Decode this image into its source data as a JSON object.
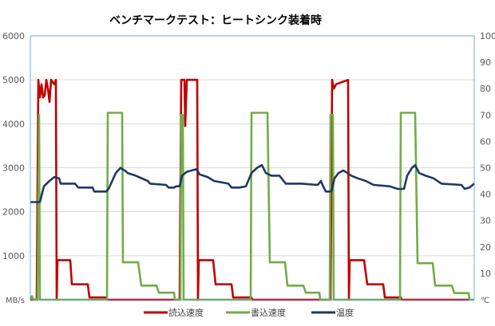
{
  "chart_data": {
    "type": "line",
    "title": "ベンチマークテスト：ヒートシンク装着時",
    "y_left": {
      "label": "MB/s",
      "range": [
        0,
        6000
      ],
      "ticks": [
        1000,
        2000,
        3000,
        4000,
        5000,
        6000
      ]
    },
    "y_right": {
      "label": "℃",
      "range": [
        0,
        100
      ],
      "ticks": [
        10,
        20,
        30,
        40,
        50,
        60,
        70,
        80,
        90,
        100
      ]
    },
    "x_range": [
      0,
      556
    ],
    "grid": true,
    "legend_position": "bottom",
    "series": [
      {
        "name": "読込速度",
        "axis": "left",
        "color": "#c00000",
        "points": [
          [
            0,
            0
          ],
          [
            8,
            0
          ],
          [
            10,
            5000
          ],
          [
            12,
            4600
          ],
          [
            14,
            4900
          ],
          [
            16,
            4600
          ],
          [
            18,
            4650
          ],
          [
            20,
            5000
          ],
          [
            22,
            4800
          ],
          [
            24,
            4500
          ],
          [
            26,
            5000
          ],
          [
            30,
            4900
          ],
          [
            32,
            5000
          ],
          [
            33,
            0
          ],
          [
            34,
            900
          ],
          [
            50,
            900
          ],
          [
            52,
            350
          ],
          [
            72,
            350
          ],
          [
            74,
            50
          ],
          [
            95,
            50
          ],
          [
            96,
            0
          ],
          [
            187,
            0
          ],
          [
            189,
            5000
          ],
          [
            193,
            5000
          ],
          [
            194,
            3950
          ],
          [
            196,
            5000
          ],
          [
            209,
            5000
          ],
          [
            210,
            0
          ],
          [
            211,
            900
          ],
          [
            229,
            900
          ],
          [
            232,
            350
          ],
          [
            252,
            350
          ],
          [
            254,
            50
          ],
          [
            277,
            50
          ],
          [
            278,
            0
          ],
          [
            376,
            0
          ],
          [
            378,
            5000
          ],
          [
            380,
            4800
          ],
          [
            383,
            4900
          ],
          [
            398,
            5000
          ],
          [
            399,
            0
          ],
          [
            400,
            900
          ],
          [
            418,
            900
          ],
          [
            422,
            350
          ],
          [
            442,
            350
          ],
          [
            444,
            50
          ],
          [
            464,
            50
          ],
          [
            465,
            0
          ],
          [
            550,
            0
          ]
        ]
      },
      {
        "name": "書込速度",
        "axis": "left",
        "color": "#70ad47",
        "points": [
          [
            0,
            0
          ],
          [
            2,
            80
          ],
          [
            4,
            0
          ],
          [
            9,
            0
          ],
          [
            11,
            4200
          ],
          [
            12,
            0
          ],
          [
            96,
            0
          ],
          [
            97,
            4250
          ],
          [
            115,
            4250
          ],
          [
            116,
            850
          ],
          [
            135,
            850
          ],
          [
            139,
            320
          ],
          [
            158,
            320
          ],
          [
            161,
            160
          ],
          [
            180,
            160
          ],
          [
            181,
            0
          ],
          [
            188,
            0
          ],
          [
            189,
            4200
          ],
          [
            191,
            4200
          ],
          [
            192,
            0
          ],
          [
            276,
            0
          ],
          [
            277,
            4250
          ],
          [
            297,
            4250
          ],
          [
            300,
            850
          ],
          [
            319,
            850
          ],
          [
            322,
            320
          ],
          [
            342,
            320
          ],
          [
            345,
            160
          ],
          [
            362,
            160
          ],
          [
            363,
            0
          ],
          [
            375,
            0
          ],
          [
            376,
            4200
          ],
          [
            379,
            4200
          ],
          [
            380,
            0
          ],
          [
            463,
            0
          ],
          [
            464,
            4250
          ],
          [
            482,
            4250
          ],
          [
            485,
            830
          ],
          [
            504,
            830
          ],
          [
            507,
            320
          ],
          [
            528,
            320
          ],
          [
            531,
            150
          ],
          [
            549,
            150
          ],
          [
            550,
            0
          ],
          [
            556,
            0
          ]
        ]
      },
      {
        "name": "温度",
        "axis": "right",
        "color": "#1f3864",
        "points": [
          [
            0,
            37
          ],
          [
            12,
            37
          ],
          [
            17,
            43
          ],
          [
            24,
            45
          ],
          [
            30,
            46.5
          ],
          [
            36,
            46
          ],
          [
            38,
            44
          ],
          [
            56,
            44
          ],
          [
            60,
            42.5
          ],
          [
            78,
            42.5
          ],
          [
            80,
            41
          ],
          [
            95,
            41
          ],
          [
            98,
            42
          ],
          [
            107,
            48
          ],
          [
            113,
            50
          ],
          [
            118,
            49
          ],
          [
            122,
            48
          ],
          [
            132,
            47
          ],
          [
            147,
            45
          ],
          [
            150,
            44
          ],
          [
            170,
            43.5
          ],
          [
            173,
            42.5
          ],
          [
            180,
            42.5
          ],
          [
            183,
            43
          ],
          [
            187,
            43
          ],
          [
            190,
            47
          ],
          [
            196,
            48.5
          ],
          [
            208,
            49.5
          ],
          [
            212,
            47.5
          ],
          [
            222,
            46.5
          ],
          [
            230,
            45
          ],
          [
            248,
            44
          ],
          [
            252,
            42.5
          ],
          [
            262,
            42.5
          ],
          [
            270,
            43
          ],
          [
            277,
            48
          ],
          [
            284,
            50
          ],
          [
            290,
            51
          ],
          [
            295,
            48
          ],
          [
            302,
            47
          ],
          [
            312,
            47
          ],
          [
            320,
            44
          ],
          [
            340,
            44
          ],
          [
            360,
            43.5
          ],
          [
            364,
            45
          ],
          [
            366,
            43.5
          ],
          [
            370,
            41
          ],
          [
            377,
            41
          ],
          [
            381,
            46
          ],
          [
            386,
            48
          ],
          [
            392,
            49
          ],
          [
            397,
            48
          ],
          [
            402,
            47
          ],
          [
            410,
            46
          ],
          [
            420,
            45
          ],
          [
            430,
            43.5
          ],
          [
            450,
            43
          ],
          [
            460,
            42
          ],
          [
            468,
            42
          ],
          [
            472,
            47
          ],
          [
            478,
            50
          ],
          [
            482,
            51
          ],
          [
            487,
            48
          ],
          [
            495,
            47
          ],
          [
            505,
            46
          ],
          [
            515,
            44
          ],
          [
            540,
            43.5
          ],
          [
            544,
            42
          ],
          [
            550,
            42.5
          ],
          [
            556,
            44
          ]
        ]
      }
    ]
  }
}
